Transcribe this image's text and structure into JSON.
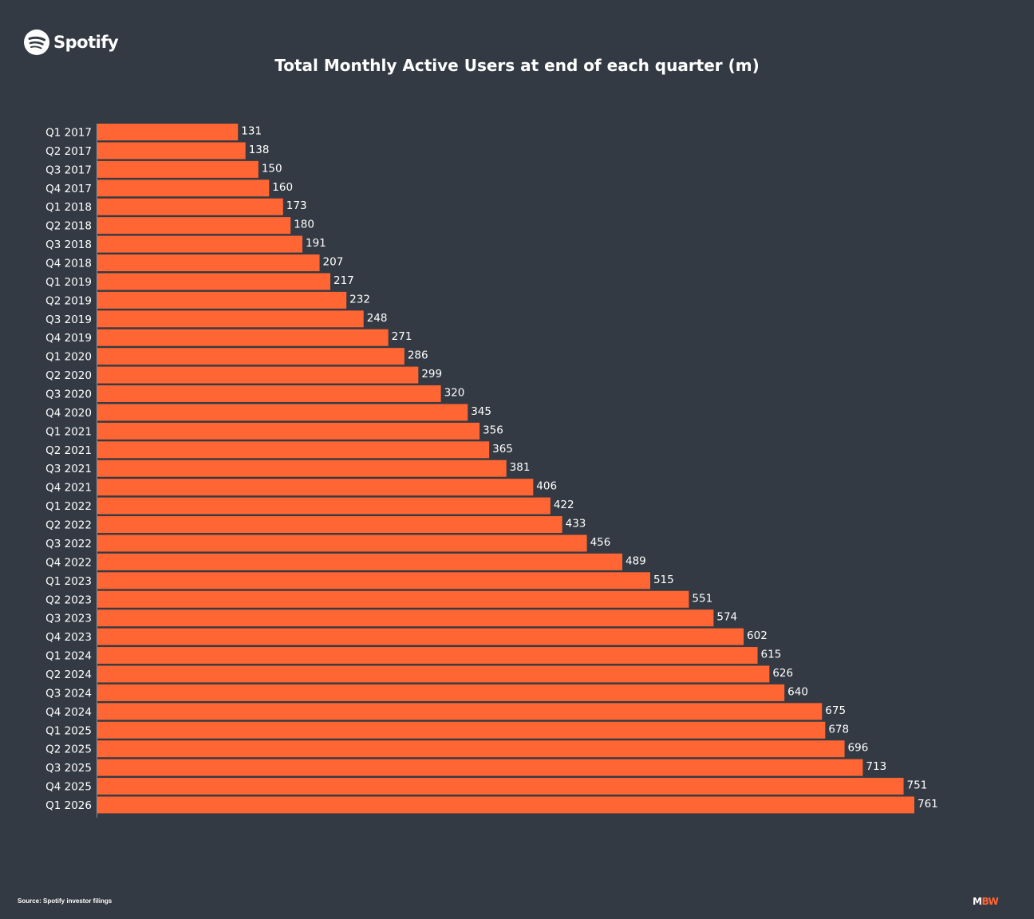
{
  "header": {
    "logo_text": "Spotify",
    "logo_icon": "spotify-logo-icon",
    "title": "Total Monthly Active Users at end of each quarter (m)"
  },
  "footer": {
    "source": "Source: Spotify investor filings",
    "brand_part1": "M",
    "brand_part2": "BW"
  },
  "colors": {
    "background": "#343a43",
    "bar": "#ff6633",
    "text": "#ffffff"
  },
  "chart_data": {
    "type": "bar",
    "orientation": "horizontal",
    "title": "Total Monthly Active Users at end of each quarter (m)",
    "xlabel": "",
    "ylabel": "",
    "xlim": [
      0,
      761
    ],
    "grid": false,
    "categories": [
      "Q1 2017",
      "Q2 2017",
      "Q3 2017",
      "Q4 2017",
      "Q1 2018",
      "Q2 2018",
      "Q3 2018",
      "Q4 2018",
      "Q1 2019",
      "Q2 2019",
      "Q3 2019",
      "Q4 2019",
      "Q1 2020",
      "Q2 2020",
      "Q3 2020",
      "Q4 2020",
      "Q1 2021",
      "Q2 2021",
      "Q3 2021",
      "Q4 2021",
      "Q1 2022",
      "Q2 2022",
      "Q3 2022",
      "Q4 2022",
      "Q1 2023",
      "Q2 2023",
      "Q3 2023",
      "Q4 2023",
      "Q1 2024",
      "Q2 2024",
      "Q3 2024",
      "Q4 2024",
      "Q1 2025",
      "Q2 2025",
      "Q3 2025",
      "Q4 2025",
      "Q1 2026"
    ],
    "values": [
      131,
      138,
      150,
      160,
      173,
      180,
      191,
      207,
      217,
      232,
      248,
      271,
      286,
      299,
      320,
      345,
      356,
      365,
      381,
      406,
      422,
      433,
      456,
      489,
      515,
      551,
      574,
      602,
      615,
      626,
      640,
      675,
      678,
      696,
      713,
      751,
      761
    ]
  }
}
